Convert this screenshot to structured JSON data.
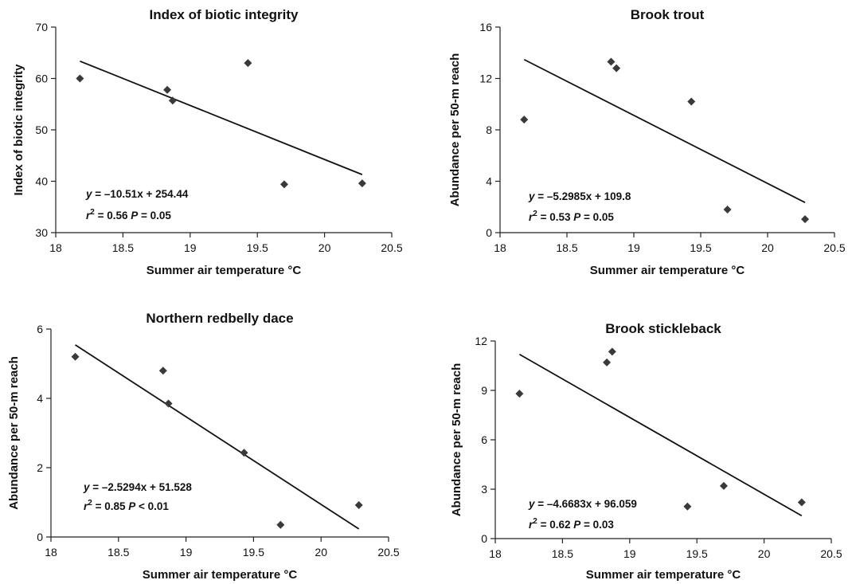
{
  "chart_data": [
    {
      "type": "scatter",
      "title": "Index of biotic integrity",
      "xlabel": "Summer air temperature °C",
      "ylabel": "Index of biotic integrity",
      "xlim": [
        18,
        20.5
      ],
      "ylim": [
        30,
        70
      ],
      "xticks": [
        "18",
        "18.5",
        "19",
        "19.5",
        "20",
        "20.5"
      ],
      "yticks": [
        "30",
        "40",
        "50",
        "60",
        "70"
      ],
      "points": [
        {
          "x": 18.18,
          "y": 60.0
        },
        {
          "x": 18.83,
          "y": 57.8
        },
        {
          "x": 18.87,
          "y": 55.7
        },
        {
          "x": 19.43,
          "y": 63.0
        },
        {
          "x": 19.7,
          "y": 39.4
        },
        {
          "x": 20.28,
          "y": 39.6
        }
      ],
      "trendline": {
        "slope": -10.51,
        "intercept": 254.44,
        "x_range": [
          18.18,
          20.28
        ]
      },
      "equation": {
        "line1": "y = –10.51x + 254.44",
        "r2": "= 0.56",
        "p": "= 0.05"
      }
    },
    {
      "type": "scatter",
      "title": "Brook trout",
      "xlabel": "Summer air temperature °C",
      "ylabel": "Abundance per 50-m reach",
      "xlim": [
        18,
        20.5
      ],
      "ylim": [
        0,
        16
      ],
      "xticks": [
        "18",
        "18.5",
        "19",
        "19.5",
        "20",
        "20.5"
      ],
      "yticks": [
        "0",
        "4",
        "8",
        "12",
        "16"
      ],
      "points": [
        {
          "x": 18.18,
          "y": 8.8
        },
        {
          "x": 18.83,
          "y": 13.3
        },
        {
          "x": 18.87,
          "y": 12.8
        },
        {
          "x": 19.43,
          "y": 10.2
        },
        {
          "x": 19.7,
          "y": 1.8
        },
        {
          "x": 20.28,
          "y": 1.05
        }
      ],
      "trendline": {
        "slope": -5.2985,
        "intercept": 109.8,
        "x_range": [
          18.18,
          20.28
        ]
      },
      "equation": {
        "line1": "y = –5.2985x + 109.8",
        "r2": "= 0.53",
        "p": "= 0.05"
      }
    },
    {
      "type": "scatter",
      "title": "Northern redbelly dace",
      "xlabel": "Summer air temperature °C",
      "ylabel": "Abundance per 50-m reach",
      "xlim": [
        18,
        20.5
      ],
      "ylim": [
        0,
        6
      ],
      "xticks": [
        "18",
        "18.5",
        "19",
        "19.5",
        "20",
        "20.5"
      ],
      "yticks": [
        "0",
        "2",
        "4",
        "6"
      ],
      "points": [
        {
          "x": 18.18,
          "y": 5.2
        },
        {
          "x": 18.83,
          "y": 4.8
        },
        {
          "x": 18.87,
          "y": 3.85
        },
        {
          "x": 19.43,
          "y": 2.43
        },
        {
          "x": 19.7,
          "y": 0.35
        },
        {
          "x": 20.28,
          "y": 0.92
        }
      ],
      "trendline": {
        "slope": -2.5294,
        "intercept": 51.528,
        "x_range": [
          18.18,
          20.28
        ]
      },
      "equation": {
        "line1": "y = –2.5294x + 51.528",
        "r2": "= 0.85",
        "p": "< 0.01"
      }
    },
    {
      "type": "scatter",
      "title": "Brook stickleback",
      "xlabel": "Summer air temperature °C",
      "ylabel": "Abundance per 50-m reach",
      "xlim": [
        18,
        20.5
      ],
      "ylim": [
        0,
        12
      ],
      "xticks": [
        "18",
        "18.5",
        "19",
        "19.5",
        "20",
        "20.5"
      ],
      "yticks": [
        "0",
        "3",
        "6",
        "9",
        "12"
      ],
      "points": [
        {
          "x": 18.18,
          "y": 8.8
        },
        {
          "x": 18.83,
          "y": 10.7
        },
        {
          "x": 18.87,
          "y": 11.35
        },
        {
          "x": 19.43,
          "y": 1.95
        },
        {
          "x": 19.7,
          "y": 3.2
        },
        {
          "x": 20.28,
          "y": 2.2
        }
      ],
      "trendline": {
        "slope": -4.6683,
        "intercept": 96.059,
        "x_range": [
          18.18,
          20.28
        ]
      },
      "equation": {
        "line1": "y = –4.6683x + 96.059",
        "r2": "= 0.62",
        "p": "= 0.03"
      }
    }
  ]
}
